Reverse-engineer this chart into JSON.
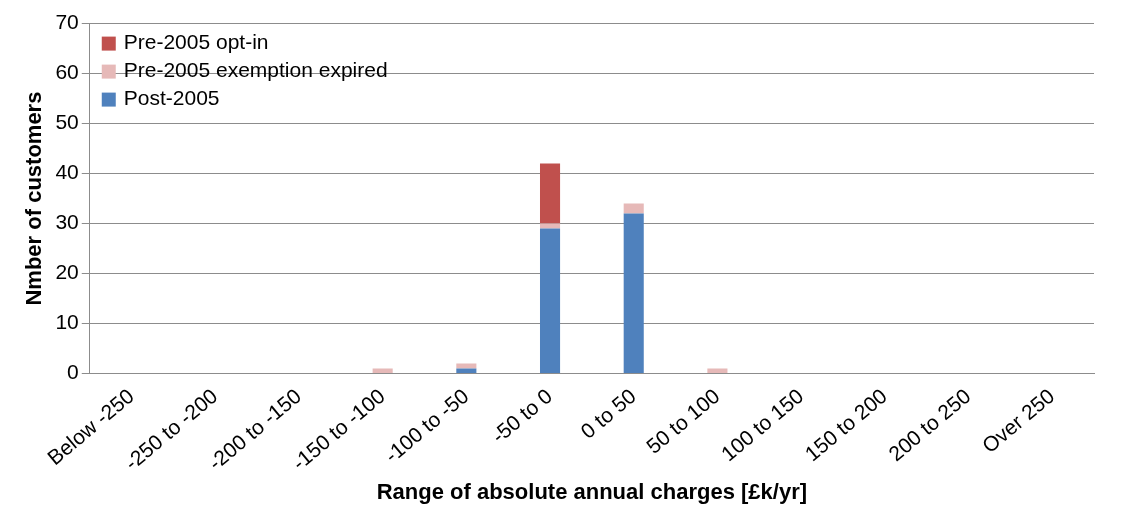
{
  "chart_data": {
    "type": "bar",
    "xlabel": "Range of absolute annual charges [£k/yr]",
    "ylabel": "Nmber of customers",
    "categories": [
      "Below -250",
      "-250 to -200",
      "-200 to -150",
      "-150 to -100",
      "-100 to -50",
      "-50 to 0",
      "0 to 50",
      "50 to 100",
      "100 to 150",
      "150 to 200",
      "200 to 250",
      "Over 250"
    ],
    "series": [
      {
        "name": "Post-2005",
        "color": "#4f81bd",
        "values": [
          0,
          0,
          0,
          0,
          1,
          29,
          32,
          0,
          0,
          0,
          0,
          0
        ]
      },
      {
        "name": "Pre-2005 exemption expired",
        "color": "#e6b9b8",
        "values": [
          0,
          0,
          0,
          1,
          1,
          1,
          2,
          1,
          0,
          0,
          0,
          0
        ]
      },
      {
        "name": "Pre-2005 opt-in",
        "color": "#c0504d",
        "values": [
          0,
          0,
          0,
          0,
          0,
          12,
          0,
          0,
          0,
          0,
          0,
          0
        ]
      }
    ],
    "stacked": true,
    "ylim": [
      0,
      70
    ],
    "yticks": [
      0,
      10,
      20,
      30,
      40,
      50,
      60,
      70
    ],
    "grid": "y",
    "legend": "top left"
  }
}
